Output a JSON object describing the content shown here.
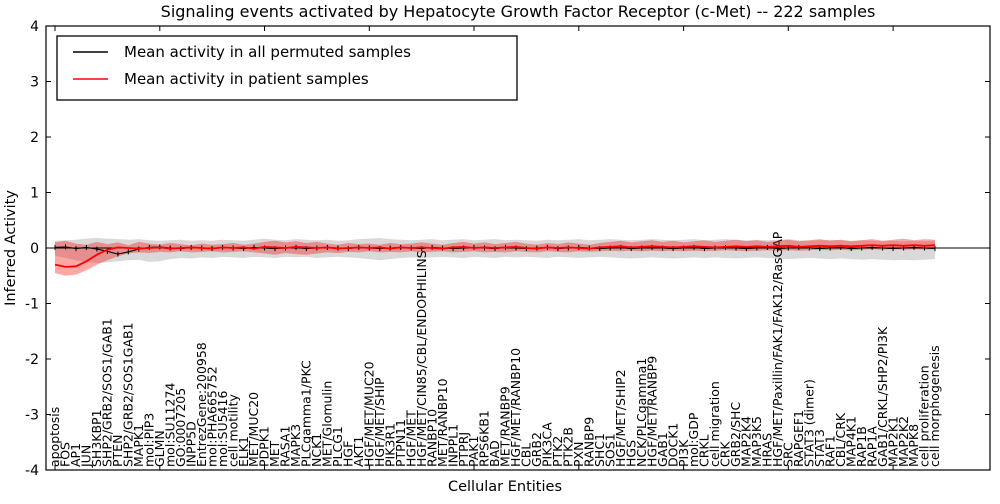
{
  "title": "Signaling events activated by Hepatocyte Growth Factor Receptor (c-Met) -- 222 samples",
  "axes": {
    "ylabel": "Inferred Activity",
    "xlabel": "Cellular Entities",
    "yticks": [
      4,
      3,
      2,
      1,
      0,
      -1,
      -2,
      -3,
      -4
    ],
    "ylim": [
      -4,
      4
    ]
  },
  "legend": {
    "entries": [
      {
        "label": "Mean activity in all permuted samples",
        "color": "#000000"
      },
      {
        "label": "Mean activity in patient samples",
        "color": "#ff0000"
      }
    ]
  },
  "chart_data": {
    "type": "line",
    "title": "Signaling events activated by Hepatocyte Growth Factor Receptor (c-Met) -- 222 samples",
    "xlabel": "Cellular Entities",
    "ylabel": "Inferred Activity",
    "ylim": [
      -4,
      4
    ],
    "grid": false,
    "legend_position": "upper left",
    "categories": [
      "apoptosis",
      "FOS",
      "AP1",
      "JUN",
      "SH3KBP1",
      "SHP2/GRB2/SOS1/GAB1",
      "PTEN",
      "SHP2/GRB2/SOS1GAB1",
      "MAPK1",
      "mol:PIP3",
      "GLMN",
      "mol:SU11274",
      "GO:0007205",
      "INPP5D",
      "EntrezGene:200958",
      "mol:PHA665752",
      "mol:SU5416",
      "cell motility",
      "ELK1",
      "MET/MUC20",
      "PDPK1",
      "MET",
      "RASA1",
      "MAPK3",
      "PLCgamma1/PKC",
      "NCK1",
      "MET/Glomulin",
      "PLCG1",
      "HGF",
      "AKT1",
      "HGF/MET/MUC20",
      "HGF/MET/SHIP",
      "PIK3R1",
      "PTPN11",
      "HGF/MET",
      "HGF/MET/CIN85/CBL/ENDOPHILINS",
      "RANBP10",
      "MET/RANBP10",
      "INPPL1",
      "PTPRJ",
      "PAK1",
      "RPS6KB1",
      "BAD",
      "MET/RANBP9",
      "HGF/MET/RANBP10",
      "CBL",
      "GRB2",
      "PIK3CA",
      "PTK2",
      "PTK2B",
      "PXN",
      "RANBP9",
      "SHC1",
      "SOS1",
      "HGF/MET/SHIP2",
      "HGS",
      "NCK/PLCgamma1",
      "HGF/MET/RANBP9",
      "GAB1",
      "DOCK1",
      "PI3K",
      "mol:GDP",
      "CRKL",
      "cell migration",
      "CRK",
      "GRB2/SHC",
      "MAP2K4",
      "MAP3K5",
      "HRAS",
      "HGF/MET/Paxillin/FAK1/FAK12/RasGAP",
      "SRC",
      "RAPGEF1",
      "STAT3 (dimer)",
      "STAT3",
      "RAF1",
      "CBL/CRK",
      "MAP4K1",
      "RAP1B",
      "RAP1A",
      "GAB1/CRKL/SHP2/PI3K",
      "MAP2K1",
      "MAP2K2",
      "MAPK8",
      "cell proliferation",
      "cell morphogenesis"
    ],
    "series": [
      {
        "name": "Mean activity in all permuted samples",
        "color": "#000000",
        "values": [
          0.01,
          0.02,
          -0.01,
          0.01,
          -0.02,
          -0.06,
          -0.11,
          -0.07,
          -0.02,
          0.01,
          0.02,
          0.0,
          -0.01,
          0.01,
          0.0,
          -0.01,
          0.01,
          0.0,
          -0.01,
          0.01,
          0.0,
          -0.01,
          0.0,
          0.01,
          -0.01,
          0.0,
          0.01,
          0.0,
          -0.01,
          0.01,
          0.0,
          -0.01,
          0.0,
          0.01,
          0.0,
          -0.01,
          0.01,
          0.0,
          -0.01,
          0.0,
          0.01,
          0.0,
          -0.01,
          0.01,
          0.0,
          -0.01,
          0.0,
          0.01,
          -0.01,
          0.0,
          0.01,
          0.0,
          -0.01,
          0.0,
          0.01,
          -0.01,
          0.0,
          0.01,
          0.0,
          -0.01,
          0.0,
          0.01,
          -0.01,
          0.0,
          0.01,
          0.0,
          -0.01,
          0.0,
          0.01,
          -0.01,
          0.0,
          0.01,
          0.0,
          -0.01,
          0.0,
          0.01,
          -0.01,
          0.0,
          0.01,
          0.0,
          -0.01,
          0.0,
          0.01,
          0.0,
          -0.01
        ]
      },
      {
        "name": "Mean activity in patient samples",
        "color": "#ff0000",
        "values": [
          -0.3,
          -0.34,
          -0.33,
          -0.24,
          -0.12,
          -0.03,
          0.01,
          0.0,
          -0.01,
          0.0,
          0.01,
          -0.01,
          0.0,
          0.01,
          0.0,
          -0.01,
          0.01,
          0.0,
          0.01,
          -0.01,
          0.02,
          0.01,
          0.0,
          0.02,
          0.01,
          0.0,
          0.01,
          -0.01,
          0.0,
          0.01,
          0.0,
          0.01,
          -0.01,
          0.01,
          0.0,
          0.01,
          0.0,
          -0.01,
          0.01,
          0.02,
          0.0,
          0.01,
          0.0,
          0.01,
          0.02,
          0.0,
          -0.01,
          0.01,
          0.0,
          0.01,
          0.0,
          -0.01,
          0.01,
          0.02,
          0.03,
          0.01,
          0.02,
          0.03,
          0.02,
          0.01,
          0.02,
          0.03,
          0.02,
          0.01,
          0.02,
          0.03,
          0.02,
          0.03,
          0.02,
          0.03,
          0.04,
          0.02,
          0.03,
          0.04,
          0.03,
          0.04,
          0.03,
          0.04,
          0.05,
          0.04,
          0.05,
          0.04,
          0.05,
          0.04,
          0.05
        ]
      }
    ],
    "bands": [
      {
        "name": "permuted-range-band",
        "color": "#000000",
        "opacity": 0.15,
        "upper": [
          0.13,
          0.14,
          0.15,
          0.17,
          0.18,
          0.17,
          0.16,
          0.15,
          0.16,
          0.14,
          0.13,
          0.14,
          0.15,
          0.13,
          0.14,
          0.13,
          0.15,
          0.14,
          0.13,
          0.15,
          0.17,
          0.15,
          0.14,
          0.16,
          0.15,
          0.14,
          0.15,
          0.13,
          0.14,
          0.16,
          0.17,
          0.18,
          0.16,
          0.15,
          0.14,
          0.15,
          0.16,
          0.14,
          0.15,
          0.16,
          0.14,
          0.15,
          0.16,
          0.14,
          0.15,
          0.14,
          0.13,
          0.15,
          0.14,
          0.15,
          0.16,
          0.14,
          0.15,
          0.16,
          0.15,
          0.14,
          0.15,
          0.16,
          0.15,
          0.14,
          0.15,
          0.16,
          0.14,
          0.15,
          0.16,
          0.15,
          0.14,
          0.15,
          0.14,
          0.15,
          0.16,
          0.14,
          0.13,
          0.14,
          0.15,
          0.14,
          0.13,
          0.14,
          0.13,
          0.12,
          0.13,
          0.12,
          0.13,
          0.12,
          0.13
        ],
        "lower": [
          -0.14,
          -0.18,
          -0.22,
          -0.25,
          -0.27,
          -0.26,
          -0.24,
          -0.22,
          -0.21,
          -0.25,
          -0.24,
          -0.2,
          -0.18,
          -0.19,
          -0.17,
          -0.18,
          -0.16,
          -0.17,
          -0.18,
          -0.16,
          -0.17,
          -0.18,
          -0.16,
          -0.17,
          -0.16,
          -0.18,
          -0.17,
          -0.16,
          -0.17,
          -0.18,
          -0.2,
          -0.22,
          -0.2,
          -0.18,
          -0.17,
          -0.18,
          -0.17,
          -0.16,
          -0.17,
          -0.18,
          -0.16,
          -0.17,
          -0.18,
          -0.16,
          -0.17,
          -0.16,
          -0.17,
          -0.18,
          -0.16,
          -0.17,
          -0.18,
          -0.17,
          -0.16,
          -0.17,
          -0.18,
          -0.19,
          -0.18,
          -0.17,
          -0.18,
          -0.19,
          -0.18,
          -0.17,
          -0.18,
          -0.17,
          -0.18,
          -0.19,
          -0.18,
          -0.17,
          -0.18,
          -0.19,
          -0.2,
          -0.19,
          -0.18,
          -0.19,
          -0.2,
          -0.19,
          -0.2,
          -0.21,
          -0.2,
          -0.21,
          -0.22,
          -0.21,
          -0.22,
          -0.21,
          -0.2
        ]
      },
      {
        "name": "patient-range-band",
        "color": "#ff0000",
        "opacity": 0.35,
        "upper": [
          0.1,
          0.13,
          0.08,
          0.06,
          0.11,
          0.07,
          0.1,
          0.05,
          0.11,
          0.08,
          0.06,
          0.09,
          0.07,
          0.05,
          0.08,
          0.06,
          0.07,
          0.09,
          0.06,
          0.08,
          0.11,
          0.13,
          0.1,
          0.12,
          0.09,
          0.11,
          0.08,
          0.06,
          0.09,
          0.07,
          0.08,
          0.06,
          0.09,
          0.07,
          0.08,
          0.1,
          0.08,
          0.06,
          0.09,
          0.11,
          0.08,
          0.1,
          0.07,
          0.09,
          0.11,
          0.08,
          0.06,
          0.09,
          0.07,
          0.1,
          0.08,
          0.06,
          0.09,
          0.11,
          0.13,
          0.1,
          0.12,
          0.14,
          0.11,
          0.13,
          0.1,
          0.12,
          0.14,
          0.11,
          0.13,
          0.15,
          0.12,
          0.14,
          0.11,
          0.13,
          0.15,
          0.12,
          0.14,
          0.16,
          0.13,
          0.15,
          0.12,
          0.14,
          0.16,
          0.13,
          0.15,
          0.17,
          0.14,
          0.16,
          0.15
        ],
        "lower": [
          -0.45,
          -0.5,
          -0.48,
          -0.4,
          -0.3,
          -0.22,
          -0.15,
          -0.1,
          -0.08,
          -0.09,
          -0.07,
          -0.08,
          -0.06,
          -0.08,
          -0.07,
          -0.06,
          -0.08,
          -0.07,
          -0.06,
          -0.08,
          -0.1,
          -0.12,
          -0.09,
          -0.11,
          -0.12,
          -0.1,
          -0.08,
          -0.09,
          -0.07,
          -0.08,
          -0.06,
          -0.08,
          -0.07,
          -0.08,
          -0.06,
          -0.08,
          -0.07,
          -0.06,
          -0.08,
          -0.07,
          -0.06,
          -0.08,
          -0.07,
          -0.08,
          -0.06,
          -0.07,
          -0.08,
          -0.06,
          -0.07,
          -0.08,
          -0.06,
          -0.07,
          -0.06,
          -0.05,
          -0.06,
          -0.05,
          -0.06,
          -0.05,
          -0.06,
          -0.05,
          -0.06,
          -0.05,
          -0.06,
          -0.05,
          -0.04,
          -0.05,
          -0.06,
          -0.05,
          -0.04,
          -0.05,
          -0.04,
          -0.05,
          -0.04,
          -0.03,
          -0.04,
          -0.03,
          -0.04,
          -0.03,
          -0.02,
          -0.03,
          -0.02,
          -0.03,
          -0.02,
          -0.03,
          -0.02
        ]
      }
    ]
  }
}
